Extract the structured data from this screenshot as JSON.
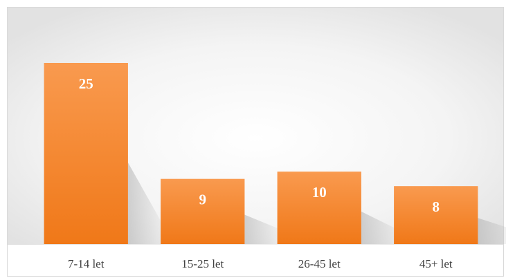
{
  "chart_data": {
    "type": "bar",
    "categories": [
      "7-14 let",
      "15-25 let",
      "26-45 let",
      "45+ let"
    ],
    "values": [
      25,
      9,
      10,
      8
    ],
    "color": "#f7913f"
  }
}
